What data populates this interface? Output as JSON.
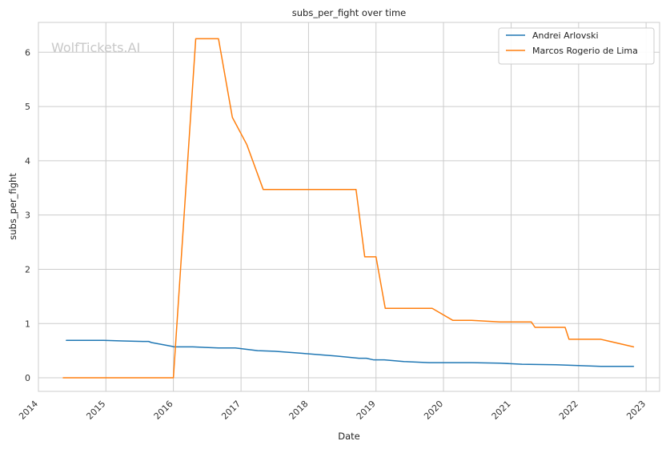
{
  "chart_data": {
    "type": "line",
    "title": "subs_per_fight over time",
    "xlabel": "Date",
    "ylabel": "subs_per_fight",
    "watermark": "WolfTickets.AI",
    "xlim": [
      "2014-01-01",
      "2023-03-15"
    ],
    "ylim": [
      -0.25,
      6.55
    ],
    "x_ticks": [
      "2014",
      "2015",
      "2016",
      "2017",
      "2018",
      "2019",
      "2020",
      "2021",
      "2022",
      "2023"
    ],
    "y_ticks": [
      "0",
      "1",
      "2",
      "3",
      "4",
      "5",
      "6"
    ],
    "grid": true,
    "legend_position": "top-right",
    "series": [
      {
        "name": "Andrei Arlovski",
        "color": "#1f77b4",
        "points": [
          [
            "2014-06-01",
            0.69
          ],
          [
            "2014-12-20",
            0.69
          ],
          [
            "2015-04-01",
            0.68
          ],
          [
            "2015-07-20",
            0.67
          ],
          [
            "2015-08-20",
            0.67
          ],
          [
            "2015-09-05",
            0.65
          ],
          [
            "2015-12-25",
            0.58
          ],
          [
            "2016-01-05",
            0.57
          ],
          [
            "2016-04-15",
            0.57
          ],
          [
            "2016-09-01",
            0.55
          ],
          [
            "2016-12-01",
            0.55
          ],
          [
            "2017-04-01",
            0.5
          ],
          [
            "2017-07-01",
            0.49
          ],
          [
            "2017-12-01",
            0.45
          ],
          [
            "2018-06-01",
            0.4
          ],
          [
            "2018-10-01",
            0.36
          ],
          [
            "2018-11-10",
            0.36
          ],
          [
            "2018-12-20",
            0.33
          ],
          [
            "2019-02-15",
            0.33
          ],
          [
            "2019-06-01",
            0.3
          ],
          [
            "2019-10-15",
            0.28
          ],
          [
            "2020-01-01",
            0.28
          ],
          [
            "2020-06-01",
            0.28
          ],
          [
            "2020-11-01",
            0.27
          ],
          [
            "2021-03-01",
            0.25
          ],
          [
            "2021-09-01",
            0.24
          ],
          [
            "2021-12-01",
            0.23
          ],
          [
            "2022-05-01",
            0.21
          ],
          [
            "2022-10-25",
            0.21
          ]
        ]
      },
      {
        "name": "Marcos Rogerio de Lima",
        "color": "#ff7f0e",
        "points": [
          [
            "2014-05-15",
            0.0
          ],
          [
            "2016-01-01",
            0.0
          ],
          [
            "2016-05-01",
            6.25
          ],
          [
            "2016-09-01",
            6.25
          ],
          [
            "2016-11-15",
            4.8
          ],
          [
            "2017-02-01",
            4.3
          ],
          [
            "2017-05-01",
            3.47
          ],
          [
            "2018-09-15",
            3.47
          ],
          [
            "2018-11-01",
            2.23
          ],
          [
            "2019-01-01",
            2.23
          ],
          [
            "2019-02-20",
            1.28
          ],
          [
            "2019-11-01",
            1.28
          ],
          [
            "2020-02-20",
            1.06
          ],
          [
            "2020-06-01",
            1.06
          ],
          [
            "2020-11-01",
            1.03
          ],
          [
            "2021-04-20",
            1.03
          ],
          [
            "2021-05-10",
            0.93
          ],
          [
            "2021-10-20",
            0.93
          ],
          [
            "2021-11-10",
            0.71
          ],
          [
            "2022-05-01",
            0.71
          ],
          [
            "2022-10-25",
            0.57
          ]
        ]
      }
    ]
  }
}
